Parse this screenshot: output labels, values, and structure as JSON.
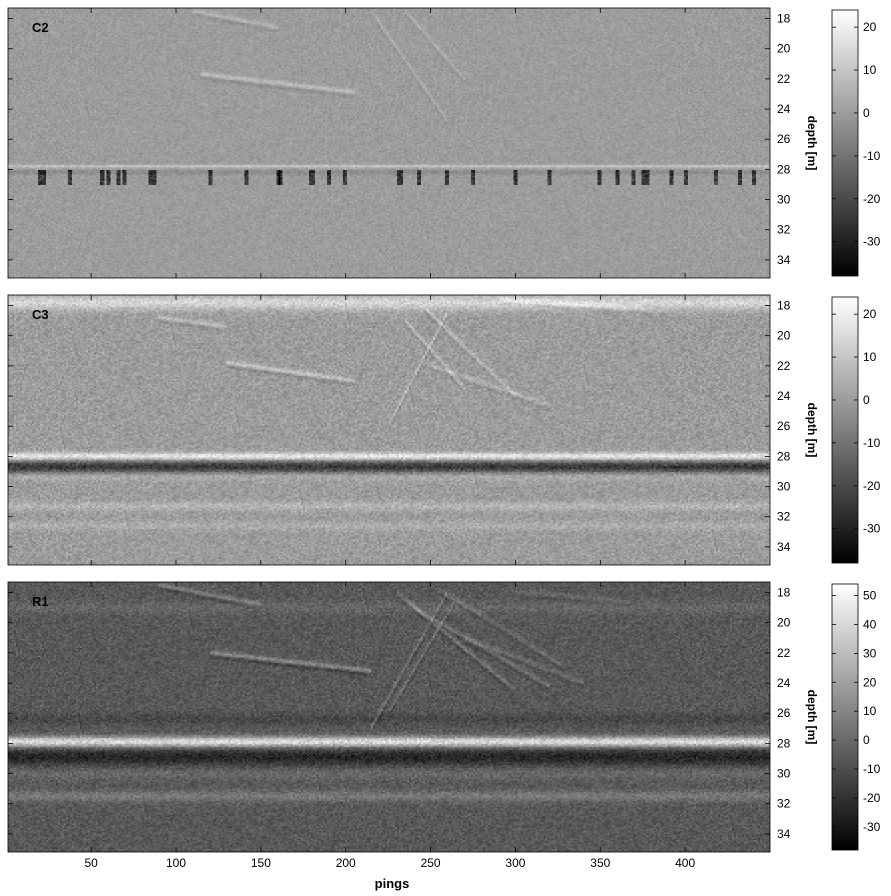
{
  "chart_data": [
    {
      "type": "heatmap",
      "panel_label": "C2",
      "x_ticks": [
        50,
        100,
        150,
        200,
        250,
        300,
        350,
        400
      ],
      "xlim": [
        1,
        450
      ],
      "y_ticks": [
        18,
        20,
        22,
        24,
        26,
        28,
        30,
        32,
        34
      ],
      "ylim": [
        17.3,
        35.2
      ],
      "ylabel": "depth [m]",
      "colorbar": {
        "ticks": [
          20,
          10,
          0,
          -10,
          -20,
          -30
        ],
        "range": [
          -38,
          24
        ]
      },
      "features": [
        {
          "kind": "seafloor_line",
          "depth": 27.8,
          "width": 0.1,
          "amplitude": 10
        },
        {
          "kind": "seafloor_line",
          "depth": 28.2,
          "width": 0.15,
          "amplitude": -4
        },
        {
          "kind": "spikes",
          "depth_from": 28.0,
          "depth_to": 29.0,
          "amplitude": -30,
          "pings": [
            20,
            22,
            38,
            57,
            60,
            66,
            70,
            85,
            87,
            120,
            142,
            160,
            162,
            180,
            190,
            200,
            232,
            243,
            260,
            275,
            300,
            320,
            350,
            360,
            370,
            375,
            378,
            392,
            400,
            418,
            432,
            440
          ]
        },
        {
          "kind": "track",
          "pings": [
            110,
            160
          ],
          "depths": [
            17.5,
            18.6
          ],
          "amplitude": 6
        },
        {
          "kind": "track",
          "pings": [
            115,
            205
          ],
          "depths": [
            21.7,
            22.9
          ],
          "amplitude": 8
        },
        {
          "kind": "track",
          "pings": [
            215,
            260
          ],
          "depths": [
            17.5,
            24.8
          ],
          "amplitude": 5
        },
        {
          "kind": "track",
          "pings": [
            235,
            270
          ],
          "depths": [
            17.5,
            22.0
          ],
          "amplitude": 5
        }
      ]
    },
    {
      "type": "heatmap",
      "panel_label": "C3",
      "x_ticks": [
        50,
        100,
        150,
        200,
        250,
        300,
        350,
        400
      ],
      "xlim": [
        1,
        450
      ],
      "y_ticks": [
        18,
        20,
        22,
        24,
        26,
        28,
        30,
        32,
        34
      ],
      "ylim": [
        17.3,
        35.2
      ],
      "ylabel": "depth [m]",
      "colorbar": {
        "ticks": [
          20,
          10,
          0,
          -10,
          -20,
          -30
        ],
        "range": [
          -38,
          24
        ]
      },
      "features": [
        {
          "kind": "seafloor_line",
          "depth": 28.0,
          "width": 0.25,
          "amplitude": 20
        },
        {
          "kind": "seafloor_line",
          "depth": 28.7,
          "width": 0.45,
          "amplitude": -24
        },
        {
          "kind": "seafloor_line",
          "depth": 29.3,
          "width": 0.3,
          "amplitude": 6
        },
        {
          "kind": "seafloor_line",
          "depth": 31.3,
          "width": 0.3,
          "amplitude": 6
        },
        {
          "kind": "seafloor_line",
          "depth": 32.6,
          "width": 0.3,
          "amplitude": 4
        },
        {
          "kind": "surface_band",
          "depth": 17.8,
          "width": 0.5,
          "amplitude": 14
        },
        {
          "kind": "track",
          "pings": [
            90,
            130
          ],
          "depths": [
            18.8,
            19.4
          ],
          "amplitude": 8
        },
        {
          "kind": "track",
          "pings": [
            130,
            205
          ],
          "depths": [
            21.8,
            23.0
          ],
          "amplitude": 10
        },
        {
          "kind": "track",
          "pings": [
            225,
            260
          ],
          "depths": [
            26.0,
            18.5
          ],
          "amplitude": 9
        },
        {
          "kind": "track",
          "pings": [
            235,
            270
          ],
          "depths": [
            19.0,
            23.5
          ],
          "amplitude": 8
        },
        {
          "kind": "track",
          "pings": [
            245,
            300
          ],
          "depths": [
            18.0,
            24.0
          ],
          "amplitude": 7
        },
        {
          "kind": "track",
          "pings": [
            250,
            320
          ],
          "depths": [
            22.0,
            24.6
          ],
          "amplitude": 6
        },
        {
          "kind": "track",
          "pings": [
            290,
            380
          ],
          "depths": [
            17.6,
            18.3
          ],
          "amplitude": 6
        }
      ]
    },
    {
      "type": "heatmap",
      "panel_label": "R1",
      "x_ticks": [
        50,
        100,
        150,
        200,
        250,
        300,
        350,
        400
      ],
      "xlim": [
        1,
        450
      ],
      "y_ticks": [
        18,
        20,
        22,
        24,
        26,
        28,
        30,
        32,
        34
      ],
      "ylim": [
        17.3,
        35.2
      ],
      "xlabel": "pings",
      "ylabel": "depth [m]",
      "colorbar": {
        "ticks": [
          50,
          40,
          30,
          20,
          10,
          0,
          -10,
          -20,
          -30
        ],
        "range": [
          -38,
          54
        ]
      },
      "features": [
        {
          "kind": "background_offset",
          "value": -6
        },
        {
          "kind": "seafloor_line",
          "depth": 27.9,
          "width": 0.35,
          "amplitude": 48
        },
        {
          "kind": "seafloor_line",
          "depth": 28.9,
          "width": 0.6,
          "amplitude": -18
        },
        {
          "kind": "seafloor_line",
          "depth": 30.0,
          "width": 0.4,
          "amplitude": 6
        },
        {
          "kind": "seafloor_line",
          "depth": 31.5,
          "width": 0.35,
          "amplitude": 12
        },
        {
          "kind": "seafloor_line",
          "depth": 26.4,
          "width": 0.4,
          "amplitude": -6
        },
        {
          "kind": "seafloor_line",
          "depth": 19.0,
          "width": 0.4,
          "amplitude": 5
        },
        {
          "kind": "track",
          "pings": [
            90,
            150
          ],
          "depths": [
            17.5,
            18.8
          ],
          "amplitude": 14
        },
        {
          "kind": "track",
          "pings": [
            120,
            215
          ],
          "depths": [
            22.0,
            23.2
          ],
          "amplitude": 18
        },
        {
          "kind": "track",
          "pings": [
            215,
            260
          ],
          "depths": [
            27.0,
            18.0
          ],
          "amplitude": 14
        },
        {
          "kind": "track",
          "pings": [
            225,
            265
          ],
          "depths": [
            26.0,
            18.5
          ],
          "amplitude": 12
        },
        {
          "kind": "track",
          "pings": [
            230,
            300
          ],
          "depths": [
            18.0,
            24.5
          ],
          "amplitude": 12
        },
        {
          "kind": "track",
          "pings": [
            240,
            320
          ],
          "depths": [
            19.0,
            24.2
          ],
          "amplitude": 10
        },
        {
          "kind": "track",
          "pings": [
            255,
            330
          ],
          "depths": [
            17.8,
            23.0
          ],
          "amplitude": 9
        },
        {
          "kind": "track",
          "pings": [
            270,
            340
          ],
          "depths": [
            21.0,
            24.0
          ],
          "amplitude": 8
        },
        {
          "kind": "track",
          "pings": [
            300,
            370
          ],
          "depths": [
            18.0,
            18.6
          ],
          "amplitude": 6
        }
      ]
    }
  ]
}
